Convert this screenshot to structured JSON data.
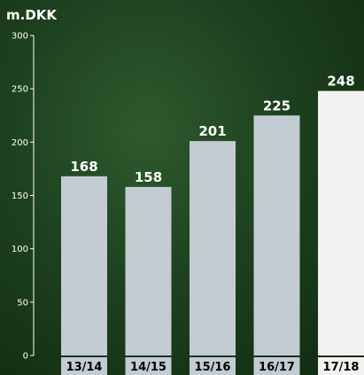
{
  "chart_data": {
    "type": "bar",
    "unit_label": "m.DKK",
    "categories": [
      "13/14",
      "14/15",
      "15/16",
      "16/17",
      "17/18"
    ],
    "values": [
      168,
      158,
      201,
      225,
      248
    ],
    "value_labels": [
      "168",
      "158",
      "201",
      "225",
      "248"
    ],
    "y_ticks": [
      0,
      50,
      100,
      150,
      200,
      250,
      300
    ],
    "ylim": [
      0,
      300
    ],
    "grid": false,
    "colors": {
      "bar": "#c3ccd3",
      "highlight_bar": "#f1f2ef",
      "category_strip": "#c3ccd3",
      "label": "#ffffff"
    }
  }
}
